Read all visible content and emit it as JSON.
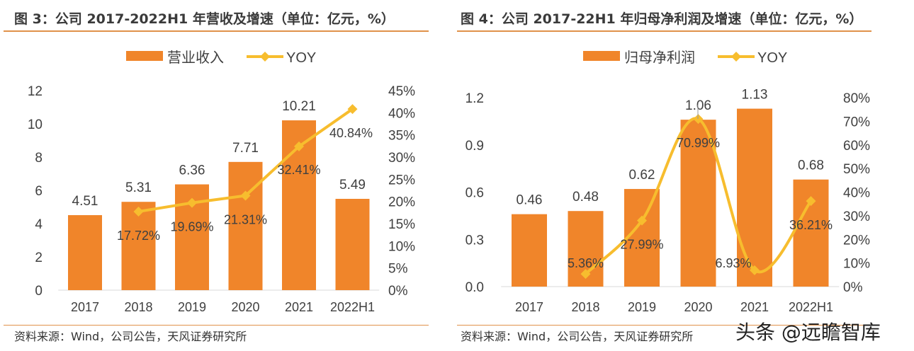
{
  "colors": {
    "bar": "#f0852a",
    "line": "#f7bd2e",
    "text": "#404040",
    "rule": "#e0914a"
  },
  "watermark": "头条 @远瞻智库",
  "chart_data": [
    {
      "type": "bar+line",
      "title": "图 3：公司 2017-2022H1 年营收及增速（单位：亿元，%）",
      "source": "资料来源：Wind，公司公告，天风证券研究所",
      "categories": [
        "2017",
        "2018",
        "2019",
        "2020",
        "2021",
        "2022H1"
      ],
      "series": [
        {
          "name": "营业收入",
          "type": "bar",
          "axis": "left",
          "values": [
            4.51,
            5.31,
            6.36,
            7.71,
            10.21,
            5.49
          ],
          "labels": [
            "4.51",
            "5.31",
            "6.36",
            "7.71",
            "10.21",
            "5.49"
          ]
        },
        {
          "name": "YOY",
          "type": "line",
          "axis": "right",
          "smooth": false,
          "values": [
            null,
            17.72,
            19.69,
            21.31,
            32.41,
            40.84
          ],
          "labels": [
            "",
            "17.72%",
            "19.69%",
            "21.31%",
            "32.41%",
            "40.84%"
          ]
        }
      ],
      "left_axis": {
        "ylim": [
          0,
          12
        ],
        "ticks": [
          "0",
          "2",
          "4",
          "6",
          "8",
          "10",
          "12"
        ]
      },
      "right_axis": {
        "ylim": [
          0,
          45
        ],
        "ticks": [
          "0%",
          "5%",
          "10%",
          "15%",
          "20%",
          "25%",
          "30%",
          "35%",
          "40%",
          "45%"
        ]
      },
      "legend": "top",
      "grid": false
    },
    {
      "type": "bar+line",
      "title": "图 4：公司 2017-22H1 年归母净利润及增速（单位：亿元，%）",
      "source": "资料来源：Wind，公司公告，天风证券研究所",
      "categories": [
        "2017",
        "2018",
        "2019",
        "2020",
        "2021",
        "2022H1"
      ],
      "series": [
        {
          "name": "归母净利润",
          "type": "bar",
          "axis": "left",
          "values": [
            0.46,
            0.48,
            0.62,
            1.06,
            1.13,
            0.68
          ],
          "labels": [
            "0.46",
            "0.48",
            "0.62",
            "1.06",
            "1.13",
            "0.68"
          ]
        },
        {
          "name": "YOY",
          "type": "line",
          "axis": "right",
          "smooth": true,
          "values": [
            null,
            5.36,
            27.99,
            70.99,
            6.93,
            36.21
          ],
          "labels": [
            "",
            "5.36%",
            "27.99%",
            "70.99%",
            "6.93%",
            "36.21%"
          ]
        }
      ],
      "left_axis": {
        "ylim": [
          0,
          1.2
        ],
        "ticks": [
          "0.0",
          "0.3",
          "0.6",
          "0.9",
          "1.2"
        ]
      },
      "right_axis": {
        "ylim": [
          0,
          80
        ],
        "ticks": [
          "0%",
          "10%",
          "20%",
          "30%",
          "40%",
          "50%",
          "60%",
          "70%",
          "80%"
        ]
      },
      "legend": "top",
      "grid": false
    }
  ]
}
